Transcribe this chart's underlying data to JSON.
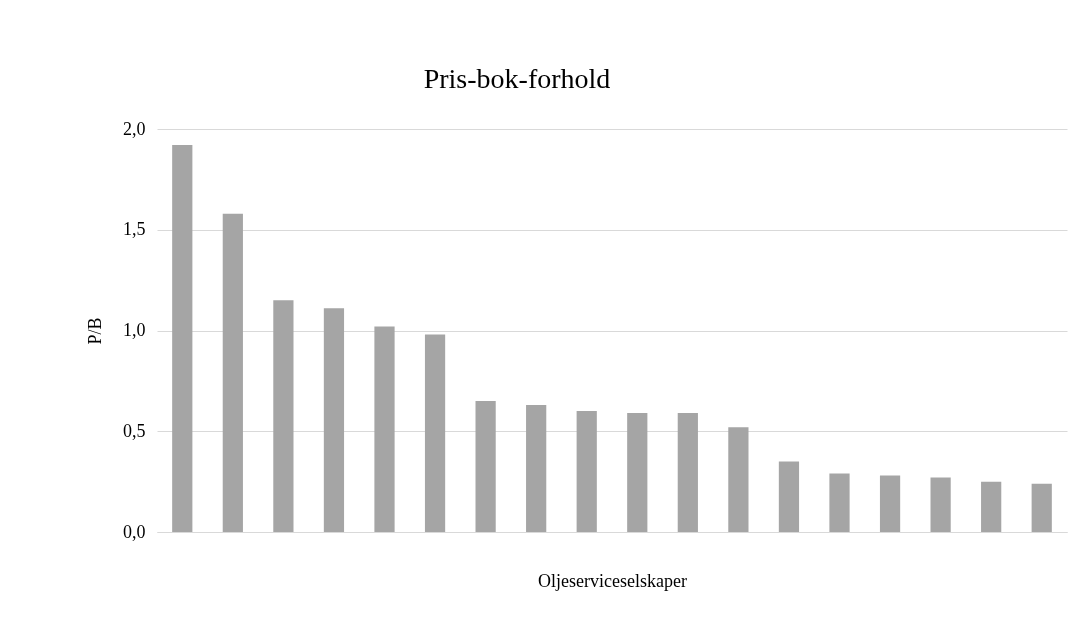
{
  "chart_data": {
    "type": "bar",
    "title": "Pris-bok-forhold",
    "xlabel": "Oljeserviceselskaper",
    "ylabel": "P/B",
    "categories": [
      null,
      null,
      null,
      null,
      null,
      null,
      null,
      null,
      null,
      null,
      null,
      null,
      null,
      null,
      null,
      null,
      null,
      null
    ],
    "values": [
      1.92,
      1.58,
      1.15,
      1.11,
      1.02,
      0.98,
      0.65,
      0.63,
      0.6,
      0.59,
      0.59,
      0.52,
      0.35,
      0.29,
      0.28,
      0.27,
      0.25,
      0.24
    ],
    "color": "#a5a5a5",
    "ylim": [
      0,
      2
    ],
    "yticks": [
      {
        "value": 0,
        "label": "0,0"
      },
      {
        "value": 0.5,
        "label": "0,5"
      },
      {
        "value": 1,
        "label": "1,0"
      },
      {
        "value": 1.5,
        "label": "1,5"
      },
      {
        "value": 2,
        "label": "2,0"
      }
    ],
    "grid": "y"
  }
}
